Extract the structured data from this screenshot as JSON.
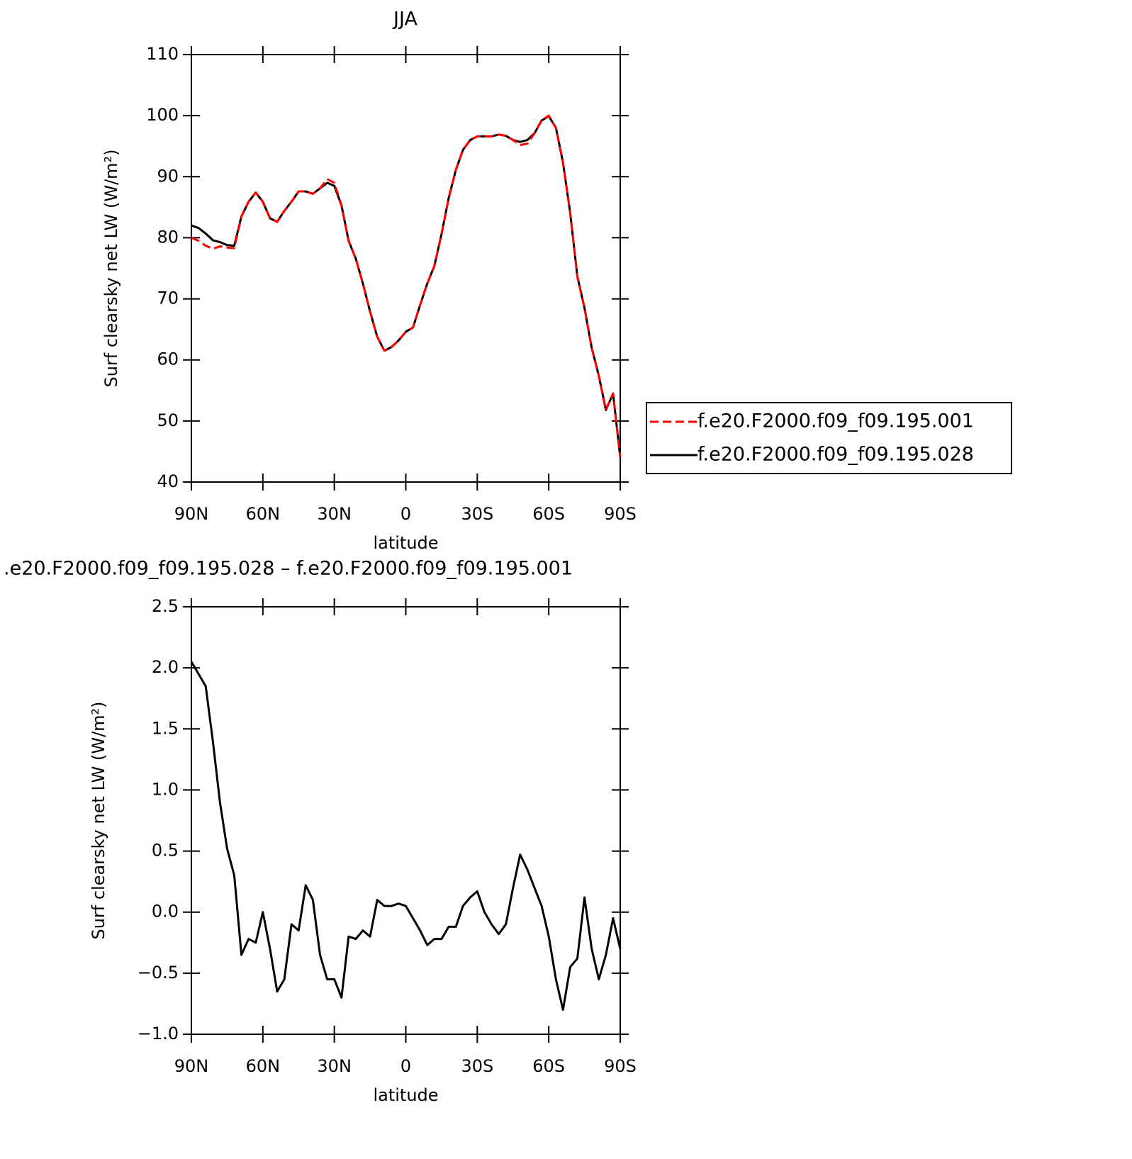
{
  "chart_data": [
    {
      "type": "line",
      "title": "JJA",
      "xlabel": "latitude",
      "ylabel": "Surf clearsky net LW (W/m²)",
      "x": [
        90,
        87,
        84,
        81,
        78,
        75,
        72,
        69,
        66,
        63,
        60,
        57,
        54,
        51,
        48,
        45,
        42,
        39,
        36,
        33,
        30,
        27,
        24,
        21,
        18,
        15,
        12,
        9,
        6,
        3,
        0,
        -3,
        -6,
        -9,
        -12,
        -15,
        -18,
        -21,
        -24,
        -27,
        -30,
        -33,
        -36,
        -39,
        -42,
        -45,
        -48,
        -51,
        -54,
        -57,
        -60,
        -63,
        -66,
        -69,
        -72,
        -75,
        -78,
        -81,
        -84,
        -87,
        -90
      ],
      "series": [
        {
          "name": "f.e20.F2000.f09_f09.195.001",
          "color": "#ff0000",
          "linestyle": "dashed",
          "values": [
            80.0,
            79.5,
            78.7,
            78.2,
            78.6,
            78.4,
            78.3,
            83.5,
            85.9,
            87.4,
            85.9,
            83.2,
            82.6,
            84.4,
            85.9,
            87.6,
            87.6,
            87.2,
            88.1,
            89.6,
            89.0,
            85.3,
            79.5,
            76.6,
            72.5,
            67.9,
            63.8,
            61.5,
            62.1,
            63.2,
            64.6,
            65.3,
            69.0,
            72.5,
            75.4,
            80.6,
            86.5,
            91.1,
            94.4,
            96.0,
            96.6,
            96.6,
            96.6,
            96.9,
            96.7,
            96.0,
            95.2,
            95.4,
            97.1,
            99.2,
            100.0,
            98.0,
            92.3,
            84.1,
            73.7,
            68.5,
            62.0,
            57.4,
            51.8,
            54.5,
            44.1
          ]
        },
        {
          "name": "f.e20.F2000.f09_f09.195.028",
          "color": "#000000",
          "linestyle": "solid",
          "values": [
            82.0,
            81.6,
            80.7,
            79.6,
            79.3,
            78.8,
            78.7,
            83.5,
            85.9,
            87.4,
            85.9,
            83.2,
            82.6,
            84.4,
            85.9,
            87.6,
            87.6,
            87.2,
            88.1,
            89.0,
            88.5,
            85.3,
            79.5,
            76.6,
            72.5,
            67.9,
            63.8,
            61.5,
            62.1,
            63.2,
            64.6,
            65.3,
            69.0,
            72.5,
            75.4,
            80.6,
            86.5,
            91.1,
            94.4,
            96.0,
            96.6,
            96.6,
            96.6,
            96.9,
            96.7,
            96.0,
            95.7,
            96.0,
            97.1,
            99.2,
            99.9,
            98.0,
            92.3,
            84.1,
            73.7,
            68.5,
            62.0,
            57.4,
            51.8,
            54.5,
            44.1
          ]
        }
      ],
      "xlim": [
        90,
        -90
      ],
      "xticks": [
        {
          "value": 90,
          "label": "90N"
        },
        {
          "value": 60,
          "label": "60N"
        },
        {
          "value": 30,
          "label": "30N"
        },
        0,
        {
          "value": -30,
          "label": "30S"
        },
        {
          "value": -60,
          "label": "60S"
        },
        {
          "value": -90,
          "label": "90S"
        }
      ],
      "ylim": [
        40,
        110
      ],
      "yticks": [
        40,
        50,
        60,
        70,
        80,
        90,
        100,
        110
      ],
      "legend": "right"
    },
    {
      "type": "line",
      "title": ".e20.F2000.f09_f09.195.028 – f.e20.F2000.f09_f09.195.001",
      "xlabel": "latitude",
      "ylabel": "Surf clearsky net LW (W/m²)",
      "x": [
        90,
        87,
        84,
        81,
        78,
        75,
        72,
        69,
        66,
        63,
        60,
        57,
        54,
        51,
        48,
        45,
        42,
        39,
        36,
        33,
        30,
        27,
        24,
        21,
        18,
        15,
        12,
        9,
        6,
        3,
        0,
        -3,
        -6,
        -9,
        -12,
        -15,
        -18,
        -21,
        -24,
        -27,
        -30,
        -33,
        -36,
        -39,
        -42,
        -45,
        -48,
        -51,
        -54,
        -57,
        -60,
        -63,
        -66,
        -69,
        -72,
        -75,
        -78,
        -81,
        -84,
        -87,
        -90
      ],
      "color": "#000000",
      "values": [
        2.05,
        1.95,
        1.85,
        1.4,
        0.9,
        0.52,
        0.3,
        -0.35,
        -0.22,
        -0.25,
        0.0,
        -0.3,
        -0.65,
        -0.55,
        -0.1,
        -0.15,
        0.22,
        0.1,
        -0.35,
        -0.55,
        -0.55,
        -0.7,
        -0.2,
        -0.22,
        -0.15,
        -0.2,
        0.1,
        0.05,
        0.05,
        0.07,
        0.05,
        -0.05,
        -0.15,
        -0.27,
        -0.22,
        -0.22,
        -0.12,
        -0.12,
        0.05,
        0.12,
        0.17,
        0.0,
        -0.1,
        -0.18,
        -0.1,
        0.2,
        0.47,
        0.35,
        0.2,
        0.05,
        -0.2,
        -0.55,
        -0.8,
        -0.45,
        -0.38,
        0.12,
        -0.3,
        -0.55,
        -0.35,
        -0.05,
        -0.3
      ],
      "xlim": [
        90,
        -90
      ],
      "xticks": [
        {
          "value": 90,
          "label": "90N"
        },
        {
          "value": 60,
          "label": "60N"
        },
        {
          "value": 30,
          "label": "30N"
        },
        0,
        {
          "value": -30,
          "label": "30S"
        },
        {
          "value": -60,
          "label": "60S"
        },
        {
          "value": -90,
          "label": "90S"
        }
      ],
      "ylim": [
        -1.0,
        2.5
      ],
      "yticks": [
        {
          "value": -1.0,
          "label": "−1.0"
        },
        {
          "value": -0.5,
          "label": "−0.5"
        },
        {
          "value": 0.0,
          "label": "0.0"
        },
        0.5,
        {
          "value": 1.0,
          "label": "1.0"
        },
        1.5,
        {
          "value": 2.0,
          "label": "2.0"
        },
        2.5
      ]
    }
  ]
}
